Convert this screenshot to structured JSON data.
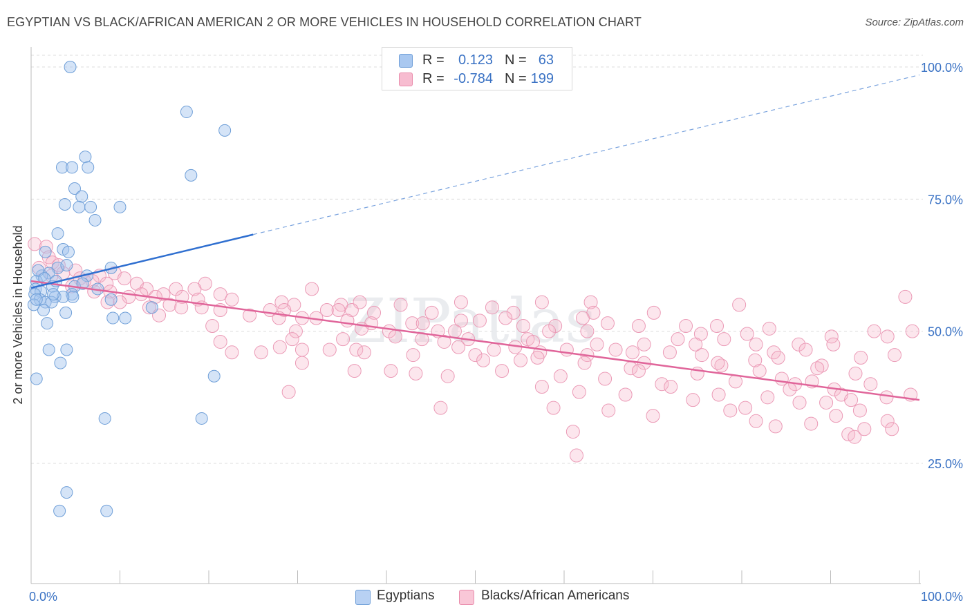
{
  "title": "EGYPTIAN VS BLACK/AFRICAN AMERICAN 2 OR MORE VEHICLES IN HOUSEHOLD CORRELATION CHART",
  "source": "Source: ZipAtlas.com",
  "watermark": "ZIPatlas",
  "legend_top": {
    "rows": [
      {
        "r_label": "R =",
        "r_value": "0.123",
        "n_label": "N =",
        "n_value": "63",
        "color": "#a9c8f0",
        "stroke": "#6f9fd8"
      },
      {
        "r_label": "R =",
        "r_value": "-0.784",
        "n_label": "N =",
        "n_value": "199",
        "color": "#f7bcd0",
        "stroke": "#e98bab"
      }
    ]
  },
  "legend_bottom": {
    "items": [
      {
        "label": "Egyptians",
        "color": "#b8d1f3",
        "stroke": "#6f9fd8"
      },
      {
        "label": "Blacks/African Americans",
        "color": "#f9c7d7",
        "stroke": "#e98bab"
      }
    ]
  },
  "colors": {
    "blue_fill": "rgba(161,195,238,0.45)",
    "blue_stroke": "#6f9fd8",
    "blue_line": "#2f6fd0",
    "pink_fill": "rgba(246,183,204,0.35)",
    "pink_stroke": "#eb9ab6",
    "pink_line": "#e0659a",
    "grid": "#dcdcdc",
    "axis_text": "#3a72c4"
  },
  "chart_data": {
    "type": "scatter",
    "title": "EGYPTIAN VS BLACK/AFRICAN AMERICAN 2 OR MORE VEHICLES IN HOUSEHOLD CORRELATION CHART",
    "xlabel": "",
    "ylabel": "2 or more Vehicles in Household",
    "xlim": [
      0,
      100
    ],
    "ylim": [
      0,
      102
    ],
    "x_tick_labels": [
      "0.0%",
      "100.0%"
    ],
    "y_ticks": [
      25,
      50,
      75,
      100
    ],
    "y_tick_labels": [
      "25.0%",
      "50.0%",
      "75.0%",
      "100.0%"
    ],
    "grid": true,
    "series": [
      {
        "name": "Egyptians",
        "points": [
          [
            4.4,
            100.0
          ],
          [
            17.5,
            91.5
          ],
          [
            21.8,
            88.0
          ],
          [
            6.1,
            83.0
          ],
          [
            3.5,
            81.0
          ],
          [
            4.6,
            81.0
          ],
          [
            6.4,
            81.0
          ],
          [
            18.0,
            79.5
          ],
          [
            4.9,
            77.0
          ],
          [
            5.7,
            75.5
          ],
          [
            3.8,
            74.0
          ],
          [
            5.4,
            73.5
          ],
          [
            6.7,
            73.5
          ],
          [
            10.0,
            73.5
          ],
          [
            7.2,
            71.0
          ],
          [
            3.0,
            68.5
          ],
          [
            3.6,
            65.5
          ],
          [
            4.2,
            65.0
          ],
          [
            1.6,
            65.0
          ],
          [
            3.0,
            62.0
          ],
          [
            4.0,
            62.5
          ],
          [
            2.0,
            61.0
          ],
          [
            1.2,
            60.5
          ],
          [
            6.3,
            60.5
          ],
          [
            0.6,
            59.5
          ],
          [
            9.0,
            62.0
          ],
          [
            0.5,
            58.0
          ],
          [
            2.4,
            58.5
          ],
          [
            4.9,
            58.5
          ],
          [
            1.1,
            57.5
          ],
          [
            2.7,
            56.5
          ],
          [
            4.6,
            57.0
          ],
          [
            4.7,
            56.5
          ],
          [
            0.4,
            57.0
          ],
          [
            1.0,
            56.0
          ],
          [
            1.6,
            55.5
          ],
          [
            2.3,
            55.5
          ],
          [
            3.6,
            56.5
          ],
          [
            9.0,
            56.0
          ],
          [
            0.3,
            55.0
          ],
          [
            1.4,
            54.0
          ],
          [
            3.9,
            53.5
          ],
          [
            13.6,
            54.5
          ],
          [
            9.2,
            52.5
          ],
          [
            10.6,
            52.5
          ],
          [
            1.8,
            51.5
          ],
          [
            2.0,
            46.5
          ],
          [
            4.0,
            46.5
          ],
          [
            3.3,
            44.0
          ],
          [
            0.6,
            41.0
          ],
          [
            20.6,
            41.5
          ],
          [
            8.3,
            33.5
          ],
          [
            19.2,
            33.5
          ],
          [
            4.0,
            19.5
          ],
          [
            3.2,
            16.0
          ],
          [
            8.5,
            16.0
          ],
          [
            0.8,
            61.5
          ],
          [
            5.8,
            59.0
          ],
          [
            1.5,
            60.0
          ],
          [
            2.8,
            59.5
          ],
          [
            0.6,
            56.0
          ],
          [
            7.5,
            58.0
          ],
          [
            2.5,
            57.0
          ]
        ],
        "trend": [
          [
            0,
            58.2
          ],
          [
            25,
            68.3
          ]
        ],
        "trend_extended": [
          [
            25,
            68.3
          ],
          [
            100,
            98.5
          ]
        ]
      },
      {
        "name": "Blacks/African Americans",
        "points": [
          [
            0.4,
            66.5
          ],
          [
            1.7,
            66.0
          ],
          [
            2.0,
            64.0
          ],
          [
            2.4,
            63.0
          ],
          [
            3.1,
            62.5
          ],
          [
            0.9,
            62.0
          ],
          [
            5.0,
            61.5
          ],
          [
            3.6,
            61.0
          ],
          [
            2.3,
            60.5
          ],
          [
            5.5,
            60.0
          ],
          [
            7.7,
            60.5
          ],
          [
            9.4,
            61.0
          ],
          [
            6.9,
            59.5
          ],
          [
            6.0,
            59.5
          ],
          [
            8.5,
            59.0
          ],
          [
            4.6,
            58.5
          ],
          [
            10.5,
            60.0
          ],
          [
            11.9,
            59.0
          ],
          [
            13.0,
            58.0
          ],
          [
            19.6,
            59.0
          ],
          [
            16.3,
            58.0
          ],
          [
            31.6,
            58.0
          ],
          [
            7.1,
            57.5
          ],
          [
            8.9,
            57.5
          ],
          [
            14.9,
            57.0
          ],
          [
            17.0,
            56.5
          ],
          [
            18.4,
            58.0
          ],
          [
            21.3,
            57.0
          ],
          [
            12.4,
            57.0
          ],
          [
            11.0,
            56.5
          ],
          [
            14.0,
            56.5
          ],
          [
            18.8,
            56.0
          ],
          [
            10.0,
            55.5
          ],
          [
            8.6,
            55.5
          ],
          [
            15.6,
            55.0
          ],
          [
            22.6,
            56.0
          ],
          [
            28.2,
            55.5
          ],
          [
            29.6,
            55.0
          ],
          [
            34.9,
            55.0
          ],
          [
            37.0,
            55.5
          ],
          [
            41.6,
            55.0
          ],
          [
            48.4,
            55.5
          ],
          [
            57.5,
            55.5
          ],
          [
            63.0,
            55.5
          ],
          [
            79.7,
            55.0
          ],
          [
            98.4,
            56.5
          ],
          [
            13.3,
            54.5
          ],
          [
            16.9,
            54.5
          ],
          [
            19.2,
            54.5
          ],
          [
            21.3,
            54.0
          ],
          [
            26.9,
            54.0
          ],
          [
            28.5,
            54.0
          ],
          [
            33.3,
            54.0
          ],
          [
            34.6,
            54.0
          ],
          [
            36.1,
            54.0
          ],
          [
            38.6,
            53.5
          ],
          [
            45.1,
            53.5
          ],
          [
            51.9,
            54.5
          ],
          [
            54.3,
            53.5
          ],
          [
            63.3,
            53.5
          ],
          [
            70.1,
            53.5
          ],
          [
            14.4,
            53.0
          ],
          [
            24.6,
            53.0
          ],
          [
            27.9,
            52.5
          ],
          [
            30.5,
            52.5
          ],
          [
            32.1,
            52.5
          ],
          [
            35.6,
            52.0
          ],
          [
            38.3,
            51.5
          ],
          [
            42.9,
            51.5
          ],
          [
            44.1,
            51.5
          ],
          [
            48.4,
            52.0
          ],
          [
            50.5,
            52.0
          ],
          [
            53.4,
            52.5
          ],
          [
            62.1,
            52.5
          ],
          [
            64.9,
            51.5
          ],
          [
            55.4,
            51.0
          ],
          [
            59.0,
            51.0
          ],
          [
            68.4,
            51.0
          ],
          [
            73.7,
            51.0
          ],
          [
            77.2,
            51.0
          ],
          [
            83.1,
            50.5
          ],
          [
            20.4,
            51.0
          ],
          [
            29.8,
            50.0
          ],
          [
            37.2,
            50.5
          ],
          [
            40.3,
            50.0
          ],
          [
            45.8,
            50.0
          ],
          [
            47.7,
            50.0
          ],
          [
            58.3,
            50.0
          ],
          [
            62.6,
            50.0
          ],
          [
            75.4,
            49.5
          ],
          [
            80.6,
            49.5
          ],
          [
            94.9,
            50.0
          ],
          [
            99.2,
            50.0
          ],
          [
            29.4,
            48.5
          ],
          [
            35.1,
            48.5
          ],
          [
            41.0,
            49.0
          ],
          [
            44.0,
            48.5
          ],
          [
            49.2,
            48.5
          ],
          [
            55.9,
            48.5
          ],
          [
            72.8,
            48.5
          ],
          [
            78.0,
            48.5
          ],
          [
            90.1,
            49.0
          ],
          [
            21.3,
            48.0
          ],
          [
            46.5,
            48.0
          ],
          [
            56.5,
            48.0
          ],
          [
            63.7,
            47.5
          ],
          [
            69.0,
            47.5
          ],
          [
            74.8,
            47.5
          ],
          [
            81.6,
            47.5
          ],
          [
            86.4,
            47.5
          ],
          [
            90.3,
            47.5
          ],
          [
            96.4,
            49.0
          ],
          [
            28.0,
            47.0
          ],
          [
            33.6,
            46.5
          ],
          [
            36.6,
            46.5
          ],
          [
            48.1,
            47.0
          ],
          [
            52.1,
            46.5
          ],
          [
            57.3,
            46.0
          ],
          [
            60.3,
            46.5
          ],
          [
            65.8,
            46.5
          ],
          [
            67.7,
            46.0
          ],
          [
            71.9,
            46.0
          ],
          [
            83.6,
            46.0
          ],
          [
            87.2,
            46.5
          ],
          [
            22.6,
            46.0
          ],
          [
            25.9,
            46.0
          ],
          [
            37.5,
            46.0
          ],
          [
            43.0,
            45.5
          ],
          [
            50.0,
            45.5
          ],
          [
            57.0,
            45.0
          ],
          [
            62.6,
            45.5
          ],
          [
            75.5,
            45.5
          ],
          [
            84.1,
            45.0
          ],
          [
            93.4,
            45.0
          ],
          [
            97.2,
            45.5
          ],
          [
            50.9,
            44.5
          ],
          [
            55.1,
            44.5
          ],
          [
            62.3,
            44.0
          ],
          [
            69.0,
            44.0
          ],
          [
            77.7,
            43.5
          ],
          [
            89.0,
            43.5
          ],
          [
            77.3,
            44.0
          ],
          [
            81.5,
            44.5
          ],
          [
            67.5,
            43.0
          ],
          [
            53.0,
            42.5
          ],
          [
            68.4,
            42.5
          ],
          [
            75.0,
            42.0
          ],
          [
            82.0,
            42.5
          ],
          [
            88.5,
            43.0
          ],
          [
            92.8,
            42.0
          ],
          [
            36.4,
            42.5
          ],
          [
            43.3,
            42.0
          ],
          [
            46.9,
            41.5
          ],
          [
            59.6,
            41.5
          ],
          [
            64.6,
            41.0
          ],
          [
            84.5,
            41.0
          ],
          [
            71.0,
            40.0
          ],
          [
            79.3,
            40.5
          ],
          [
            86.0,
            40.0
          ],
          [
            94.5,
            40.0
          ],
          [
            57.5,
            39.5
          ],
          [
            72.0,
            39.5
          ],
          [
            90.4,
            39.0
          ],
          [
            85.4,
            39.0
          ],
          [
            61.7,
            38.5
          ],
          [
            77.4,
            38.0
          ],
          [
            82.9,
            37.5
          ],
          [
            91.2,
            38.0
          ],
          [
            99.0,
            38.0
          ],
          [
            96.3,
            37.5
          ],
          [
            74.5,
            37.0
          ],
          [
            86.5,
            36.5
          ],
          [
            92.3,
            37.0
          ],
          [
            89.5,
            36.5
          ],
          [
            80.4,
            35.5
          ],
          [
            46.1,
            35.5
          ],
          [
            58.8,
            35.5
          ],
          [
            65.0,
            35.0
          ],
          [
            78.7,
            35.0
          ],
          [
            93.3,
            35.0
          ],
          [
            70.0,
            34.0
          ],
          [
            81.6,
            33.0
          ],
          [
            96.4,
            33.0
          ],
          [
            87.8,
            32.5
          ],
          [
            83.8,
            32.0
          ],
          [
            96.9,
            31.5
          ],
          [
            92.0,
            30.5
          ],
          [
            92.7,
            30.0
          ],
          [
            61.0,
            31.0
          ],
          [
            61.4,
            26.5
          ],
          [
            93.8,
            31.5
          ],
          [
            30.5,
            46.5
          ],
          [
            87.9,
            40.5
          ],
          [
            40.5,
            42.5
          ],
          [
            30.5,
            44.0
          ],
          [
            54.5,
            47.0
          ],
          [
            29.0,
            38.5
          ],
          [
            66.9,
            38.0
          ],
          [
            90.6,
            34.0
          ]
        ],
        "trend": [
          [
            0,
            59.5
          ],
          [
            100,
            37.0
          ]
        ]
      }
    ]
  }
}
